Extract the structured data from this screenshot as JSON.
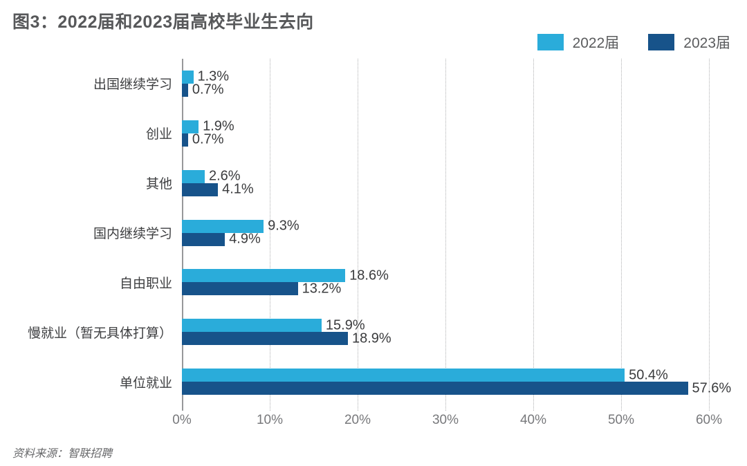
{
  "figure": {
    "title": "图3：2022届和2023届高校毕业生去向",
    "source": "资料来源：智联招聘"
  },
  "legend": [
    {
      "label": "2022届",
      "color": "#2aacda"
    },
    {
      "label": "2023届",
      "color": "#17538a"
    }
  ],
  "chart_data": {
    "type": "bar",
    "orientation": "horizontal",
    "title": "图3：2022届和2023届高校毕业生去向",
    "categories": [
      "出国继续学习",
      "创业",
      "其他",
      "国内继续学习",
      "自由职业",
      "慢就业（暂无具体打算）",
      "单位就业"
    ],
    "series": [
      {
        "name": "2022届",
        "color": "#2aacda",
        "values": [
          1.3,
          1.9,
          2.6,
          9.3,
          18.6,
          15.9,
          50.4
        ]
      },
      {
        "name": "2023届",
        "color": "#17538a",
        "values": [
          0.7,
          0.7,
          4.1,
          4.9,
          13.2,
          18.9,
          57.6
        ]
      }
    ],
    "value_suffix": "%",
    "xlabel": "",
    "ylabel": "",
    "xlim": [
      0,
      60
    ],
    "x_ticks": [
      "0%",
      "10%",
      "20%",
      "30%",
      "40%",
      "50%",
      "60%"
    ],
    "grid": "dotted-vertical",
    "legend_position": "top-right",
    "source": "资料来源：智联招聘"
  }
}
